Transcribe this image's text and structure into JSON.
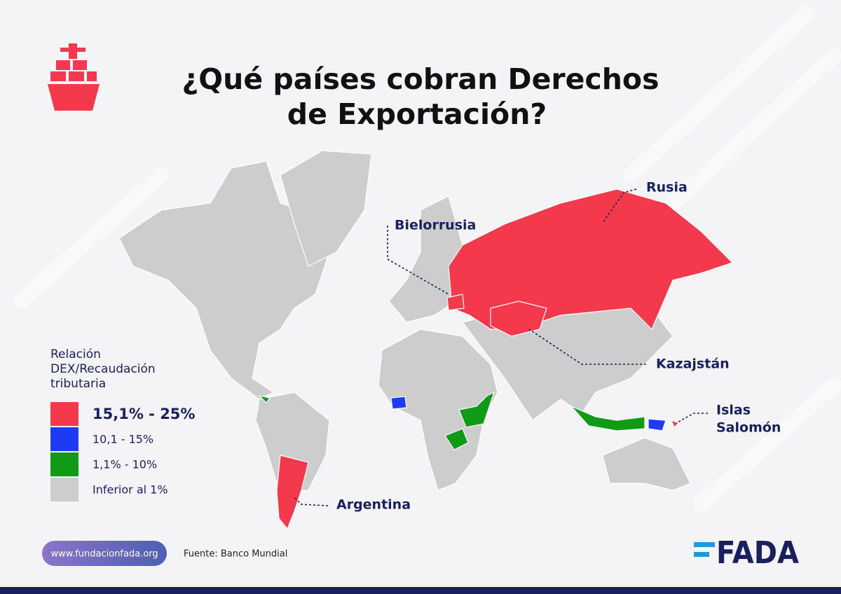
{
  "header": {
    "title": [
      "¿Qué países cobran Derechos",
      "de Exportación?"
    ]
  },
  "legend": {
    "title": [
      "Relación",
      "DEX/Recaudación",
      "tributaria"
    ],
    "items": [
      {
        "label": "15,1% - 25%",
        "color": "#f4394d"
      },
      {
        "label": "10,1 - 15%",
        "color": "#1d3bf5"
      },
      {
        "label": "1,1% - 10%",
        "color": "#0f9b16"
      },
      {
        "label": "Inferior al 1%",
        "color": "#cdcdcd"
      }
    ]
  },
  "labels": {
    "rusia": "Rusia",
    "bielorrusia": "Bielorrusia",
    "kazajstan": "Kazajstán",
    "islas_salomon": [
      "Islas",
      "Salomón"
    ],
    "argentina": "Argentina"
  },
  "footer": {
    "url": "www.fundacionfada.org",
    "source": "Fuente: Banco Mundial",
    "logo": "FADA"
  }
}
